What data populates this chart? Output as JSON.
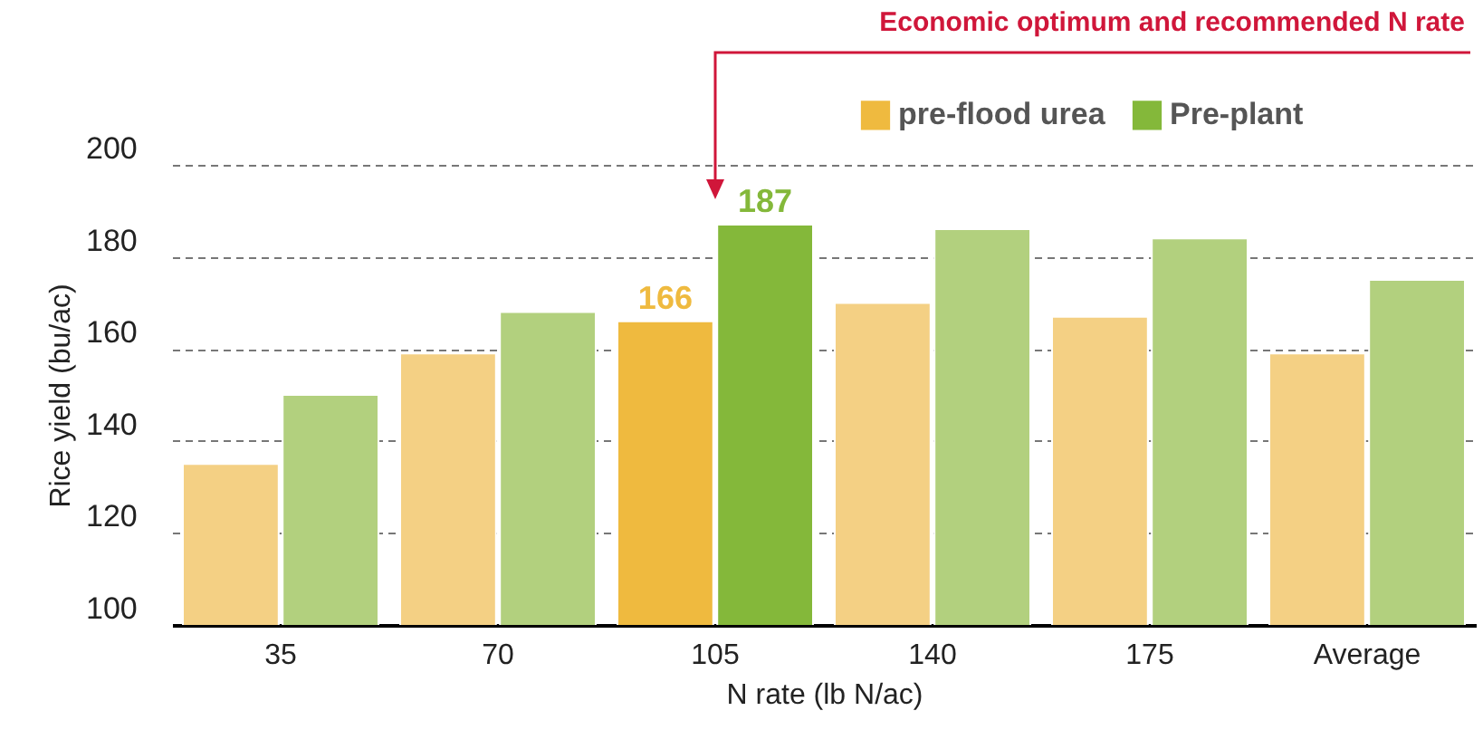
{
  "chart_data": {
    "type": "bar",
    "xlabel": "N rate (lb N/ac)",
    "ylabel": "Rice yield (bu/ac)",
    "categories": [
      "35",
      "70",
      "105",
      "140",
      "175",
      "Average"
    ],
    "series": [
      {
        "name": "pre-flood urea",
        "color": "#efba3f",
        "colors": [
          "#f4d084",
          "#f4d084",
          "#efba3f",
          "#f4d084",
          "#f4d084",
          "#f4d084"
        ],
        "values": [
          135,
          159,
          166,
          170,
          167,
          159
        ],
        "value_labels": [
          null,
          null,
          "166",
          null,
          null,
          null
        ]
      },
      {
        "name": "Pre-plant",
        "color": "#84b83a",
        "colors": [
          "#b2d07e",
          "#b2d07e",
          "#84b83a",
          "#b2d07e",
          "#b2d07e",
          "#b2d07e"
        ],
        "values": [
          150,
          168,
          187,
          186,
          184,
          175
        ],
        "value_labels": [
          null,
          null,
          "187",
          null,
          null,
          null
        ]
      }
    ],
    "ylim": [
      100,
      200
    ],
    "yticks": [
      100,
      120,
      140,
      160,
      180,
      200
    ],
    "grid": "y",
    "legend": "top right",
    "annotations": [
      "Economic optimum and recommended N rate"
    ]
  }
}
